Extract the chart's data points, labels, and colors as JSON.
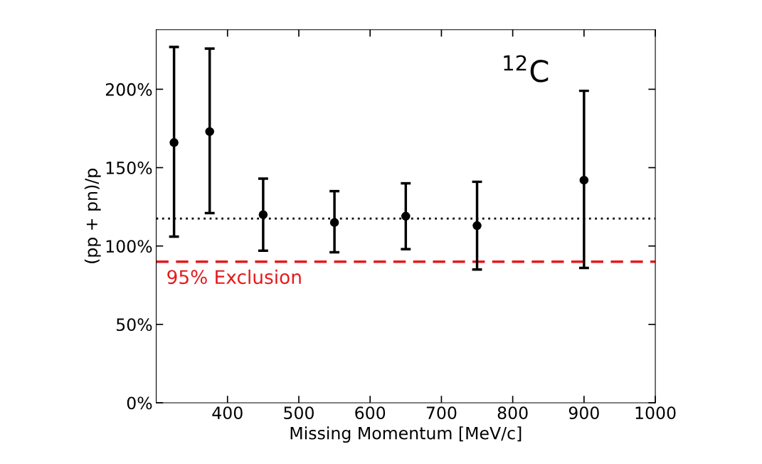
{
  "chart_data": {
    "type": "scatter",
    "xlabel": "Missing Momentum [MeV/c]",
    "ylabel": "(pp + pn)/p",
    "x": [
      325,
      375,
      450,
      550,
      650,
      750,
      900
    ],
    "series": [
      {
        "color": "#000000",
        "values": [
          166,
          173,
          120,
          115,
          119,
          113,
          142
        ],
        "errors": [
          [
            106,
            227
          ],
          [
            121,
            226
          ],
          [
            97,
            143
          ],
          [
            96,
            135
          ],
          [
            98,
            140
          ],
          [
            85,
            141
          ],
          [
            86,
            199
          ]
        ]
      }
    ],
    "marker": "circle",
    "xlim": [
      300,
      1000
    ],
    "xticks": [
      400,
      500,
      600,
      700,
      800,
      900,
      1000
    ],
    "ylim": [
      0,
      238
    ],
    "yticks": [
      {
        "value": 0,
        "label": "0%"
      },
      {
        "value": 50,
        "label": "50%"
      },
      {
        "value": 100,
        "label": "100%"
      },
      {
        "value": 150,
        "label": "150%"
      },
      {
        "value": 200,
        "label": "200%"
      }
    ],
    "ref_lines": [
      {
        "axis": "y",
        "value": 117.5,
        "color": "#000000",
        "line_style": "dotted"
      },
      {
        "axis": "y",
        "value": 90,
        "label": "95% Exclusion",
        "color": "#e41a1c",
        "line_style": "dashed"
      }
    ],
    "annotations": [
      "$^{12}$C"
    ],
    "grid": false,
    "legend": false
  }
}
